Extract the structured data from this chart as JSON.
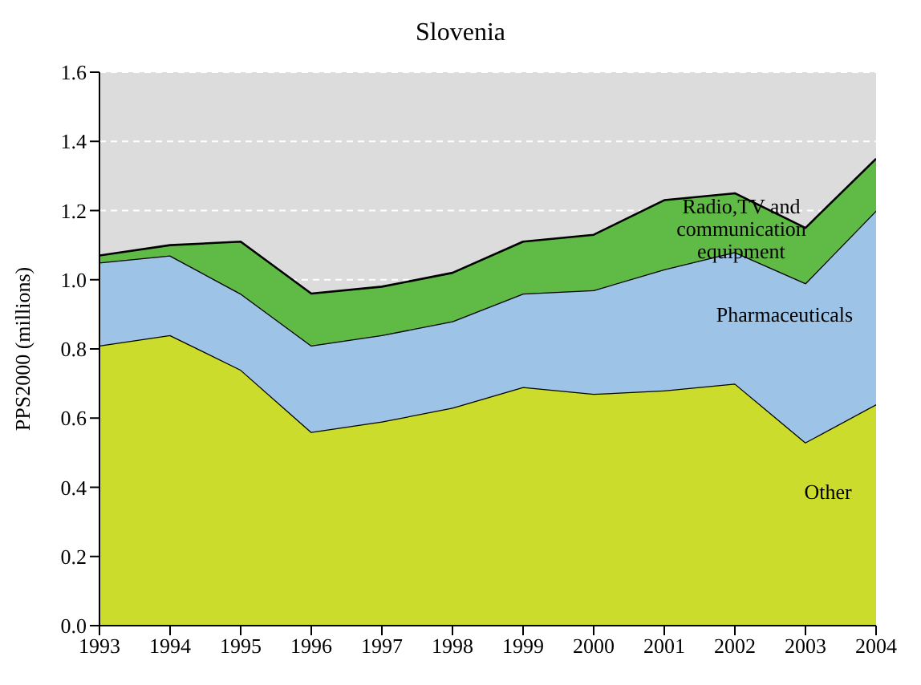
{
  "chart_data": {
    "type": "area",
    "title": "Slovenia",
    "ylabel": "PPS2000 (millions)",
    "stacked": true,
    "grid": "y",
    "x": [
      1993,
      1994,
      1995,
      1996,
      1997,
      1998,
      1999,
      2000,
      2001,
      2002,
      2003,
      2004
    ],
    "xlim": [
      1993,
      2004
    ],
    "xticks": [
      1993,
      1994,
      1995,
      1996,
      1997,
      1998,
      1999,
      2000,
      2001,
      2002,
      2003,
      2004
    ],
    "ylim": [
      0,
      1.6
    ],
    "yticks": [
      {
        "value": 0,
        "label": "0.0"
      },
      0.2,
      0.4,
      0.6,
      0.8,
      {
        "value": 1,
        "label": "1.0"
      },
      1.2,
      1.4,
      1.6
    ],
    "series": [
      {
        "name": "Other",
        "color": "#cbdc2c",
        "values": [
          0.81,
          0.84,
          0.74,
          0.56,
          0.59,
          0.63,
          0.69,
          0.67,
          0.68,
          0.7,
          0.53,
          0.64
        ]
      },
      {
        "name": "Pharmaceuticals",
        "color": "#9dc3e6",
        "values": [
          0.24,
          0.23,
          0.22,
          0.25,
          0.25,
          0.25,
          0.27,
          0.3,
          0.35,
          0.38,
          0.46,
          0.56
        ]
      },
      {
        "name": "Radio,TV and communication equipment",
        "color": "#5fba46",
        "values": [
          0.02,
          0.03,
          0.15,
          0.15,
          0.14,
          0.14,
          0.15,
          0.16,
          0.2,
          0.17,
          0.16,
          0.15
        ]
      }
    ]
  }
}
